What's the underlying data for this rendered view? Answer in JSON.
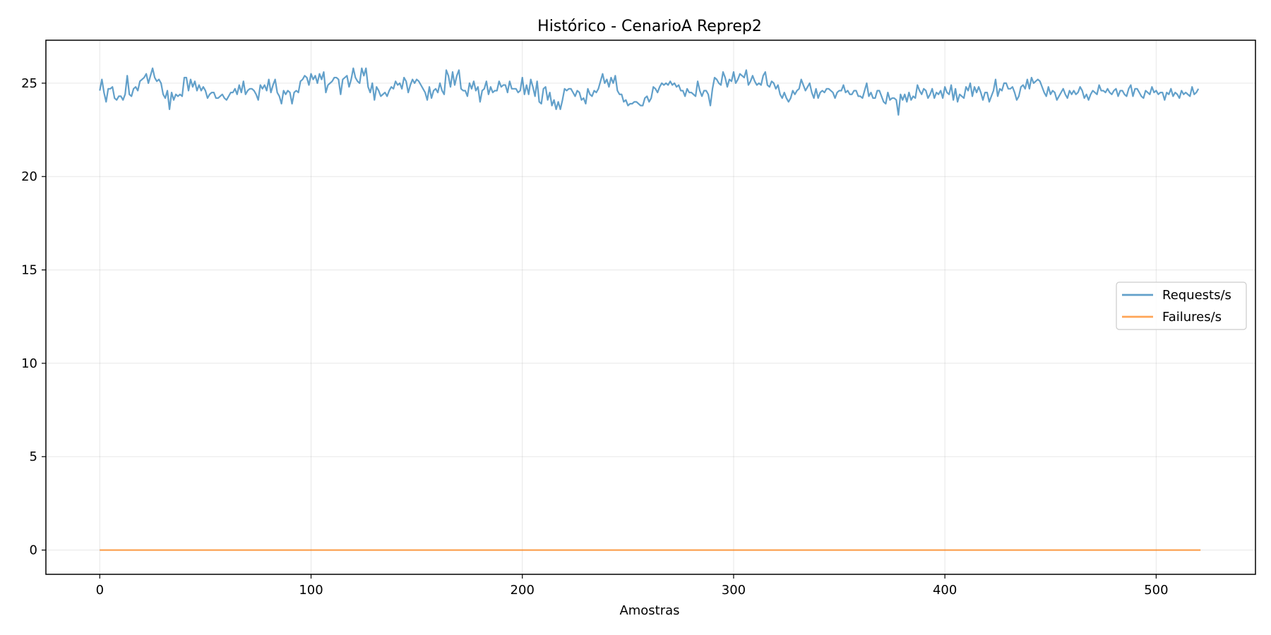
{
  "chart_data": {
    "type": "line",
    "title": "Histórico - CenarioA Reprep2",
    "xlabel": "Amostras",
    "ylabel": "",
    "xlim": [
      -25.5,
      547
    ],
    "ylim": [
      -1.3,
      27.3
    ],
    "x_ticks": [
      0,
      100,
      200,
      300,
      400,
      500
    ],
    "y_ticks": [
      0,
      5,
      10,
      15,
      20,
      25
    ],
    "grid": true,
    "legend_position": "center-right",
    "series": [
      {
        "name": "Requests/s",
        "color": "#1f77b4",
        "x_start": 0,
        "x_step": 1,
        "values": [
          24.6,
          25.2,
          24.5,
          24.0,
          24.7,
          24.7,
          24.8,
          24.2,
          24.1,
          24.3,
          24.3,
          24.1,
          24.4,
          25.4,
          24.4,
          24.3,
          24.7,
          24.8,
          24.6,
          25.1,
          25.2,
          25.3,
          25.5,
          25.0,
          25.4,
          25.8,
          25.3,
          25.1,
          25.2,
          25.0,
          24.4,
          24.2,
          24.6,
          23.6,
          24.5,
          24.1,
          24.4,
          24.3,
          24.4,
          24.3,
          25.3,
          25.3,
          24.6,
          25.2,
          24.8,
          25.1,
          24.6,
          24.9,
          24.6,
          24.8,
          24.6,
          24.2,
          24.4,
          24.5,
          24.5,
          24.2,
          24.2,
          24.3,
          24.4,
          24.2,
          24.1,
          24.3,
          24.5,
          24.5,
          24.7,
          24.4,
          24.9,
          24.5,
          25.1,
          24.4,
          24.6,
          24.7,
          24.7,
          24.6,
          24.4,
          24.1,
          24.9,
          24.7,
          24.9,
          24.6,
          25.2,
          24.5,
          24.9,
          25.2,
          24.5,
          24.3,
          23.9,
          24.6,
          24.4,
          24.6,
          24.5,
          23.9,
          24.5,
          24.6,
          24.5,
          25.1,
          25.2,
          25.4,
          25.3,
          24.9,
          25.5,
          25.2,
          25.4,
          25.0,
          25.5,
          25.2,
          25.6,
          24.5,
          24.9,
          25.0,
          25.1,
          25.3,
          25.3,
          25.2,
          24.4,
          25.2,
          25.3,
          25.4,
          24.8,
          25.2,
          25.8,
          25.3,
          25.1,
          25.0,
          25.8,
          25.4,
          25.8,
          24.8,
          24.5,
          25.0,
          24.1,
          24.8,
          24.6,
          24.3,
          24.4,
          24.5,
          24.3,
          24.6,
          24.8,
          24.7,
          25.1,
          24.9,
          25.0,
          24.7,
          25.3,
          25.1,
          24.5,
          24.9,
          25.2,
          25.0,
          25.2,
          25.1,
          24.9,
          24.7,
          24.5,
          24.1,
          24.8,
          24.2,
          24.6,
          24.7,
          24.5,
          25.0,
          24.6,
          24.4,
          25.7,
          25.4,
          24.8,
          25.6,
          24.9,
          25.4,
          25.7,
          24.7,
          24.6,
          24.6,
          24.3,
          25.0,
          24.7,
          25.1,
          24.6,
          24.8,
          24.0,
          24.6,
          24.7,
          25.1,
          24.4,
          24.8,
          24.5,
          24.6,
          24.6,
          25.1,
          24.8,
          24.9,
          24.9,
          24.5,
          25.1,
          24.7,
          24.7,
          24.7,
          24.5,
          24.6,
          25.3,
          24.4,
          24.9,
          24.4,
          25.2,
          24.8,
          24.3,
          25.1,
          24.0,
          23.9,
          24.7,
          24.8,
          24.1,
          24.5,
          23.8,
          24.1,
          23.6,
          24.0,
          23.6,
          24.1,
          24.7,
          24.6,
          24.7,
          24.7,
          24.5,
          24.3,
          24.6,
          24.5,
          24.1,
          24.2,
          23.9,
          24.7,
          24.4,
          24.3,
          24.6,
          24.5,
          24.7,
          25.1,
          25.5,
          25.0,
          25.2,
          24.8,
          25.3,
          25.0,
          25.4,
          24.6,
          24.4,
          24.4,
          24.0,
          24.1,
          23.8,
          23.9,
          23.9,
          24.0,
          24.0,
          23.9,
          23.8,
          23.8,
          24.2,
          24.3,
          24.0,
          24.2,
          24.8,
          24.7,
          24.5,
          24.8,
          25.0,
          24.9,
          25.0,
          24.9,
          25.1,
          24.9,
          25.0,
          24.8,
          24.9,
          24.6,
          24.6,
          24.3,
          24.7,
          24.5,
          24.5,
          24.4,
          24.3,
          25.1,
          24.6,
          24.3,
          24.6,
          24.6,
          24.4,
          23.8,
          24.7,
          25.3,
          25.2,
          25.0,
          24.9,
          25.6,
          25.3,
          24.8,
          25.2,
          25.1,
          25.6,
          25.0,
          25.2,
          25.5,
          25.4,
          25.3,
          25.7,
          24.9,
          25.1,
          25.4,
          25.1,
          24.9,
          25.0,
          24.9,
          25.4,
          25.6,
          24.9,
          24.8,
          25.1,
          25.0,
          24.7,
          24.9,
          24.4,
          24.2,
          24.5,
          24.2,
          24.0,
          24.2,
          24.6,
          24.4,
          24.6,
          24.7,
          25.2,
          24.9,
          24.6,
          24.8,
          25.0,
          24.5,
          24.2,
          24.7,
          24.2,
          24.5,
          24.6,
          24.5,
          24.7,
          24.7,
          24.6,
          24.5,
          24.2,
          24.5,
          24.6,
          24.6,
          24.9,
          24.5,
          24.6,
          24.4,
          24.4,
          24.6,
          24.6,
          24.3,
          24.3,
          24.2,
          24.6,
          25.0,
          24.3,
          24.5,
          24.2,
          24.2,
          24.6,
          24.6,
          24.3,
          24.0,
          23.9,
          24.5,
          24.1,
          24.2,
          24.2,
          24.1,
          23.3,
          24.4,
          24.1,
          24.4,
          24.0,
          24.5,
          24.1,
          24.3,
          24.2,
          24.9,
          24.6,
          24.4,
          24.7,
          24.6,
          24.2,
          24.4,
          24.7,
          24.2,
          24.5,
          24.4,
          24.6,
          24.2,
          24.8,
          24.5,
          24.4,
          24.9,
          24.1,
          24.7,
          24.0,
          24.4,
          24.3,
          24.2,
          24.8,
          24.6,
          25.0,
          24.3,
          24.8,
          24.5,
          24.8,
          24.5,
          24.1,
          24.5,
          24.5,
          24.0,
          24.3,
          24.6,
          25.2,
          24.3,
          24.7,
          24.6,
          25.0,
          25.0,
          24.7,
          24.7,
          24.8,
          24.5,
          24.1,
          24.3,
          24.8,
          24.9,
          24.7,
          25.2,
          24.7,
          25.3,
          25.0,
          25.1,
          25.2,
          25.1,
          24.8,
          24.5,
          24.3,
          24.8,
          24.4,
          24.6,
          24.5,
          24.1,
          24.3,
          24.5,
          24.7,
          24.4,
          24.2,
          24.6,
          24.4,
          24.6,
          24.4,
          24.5,
          24.8,
          24.6,
          24.2,
          24.4,
          24.1,
          24.4,
          24.6,
          24.5,
          24.4,
          24.9,
          24.6,
          24.6,
          24.5,
          24.7,
          24.5,
          24.4,
          24.6,
          24.7,
          24.3,
          24.6,
          24.6,
          24.4,
          24.3,
          24.7,
          24.9,
          24.3,
          24.7,
          24.7,
          24.5,
          24.3,
          24.2,
          24.6,
          24.5,
          24.4,
          24.8,
          24.5,
          24.6,
          24.4,
          24.5,
          24.5,
          24.1,
          24.5,
          24.4,
          24.7,
          24.3,
          24.5,
          24.4,
          24.2,
          24.6,
          24.4,
          24.5,
          24.4,
          24.3,
          24.8,
          24.4,
          24.5,
          24.7
        ]
      },
      {
        "name": "Failures/s",
        "color": "#ff7f0e",
        "x_start": 0,
        "x_step": 1,
        "count": 522,
        "constant_value": 0
      }
    ]
  }
}
